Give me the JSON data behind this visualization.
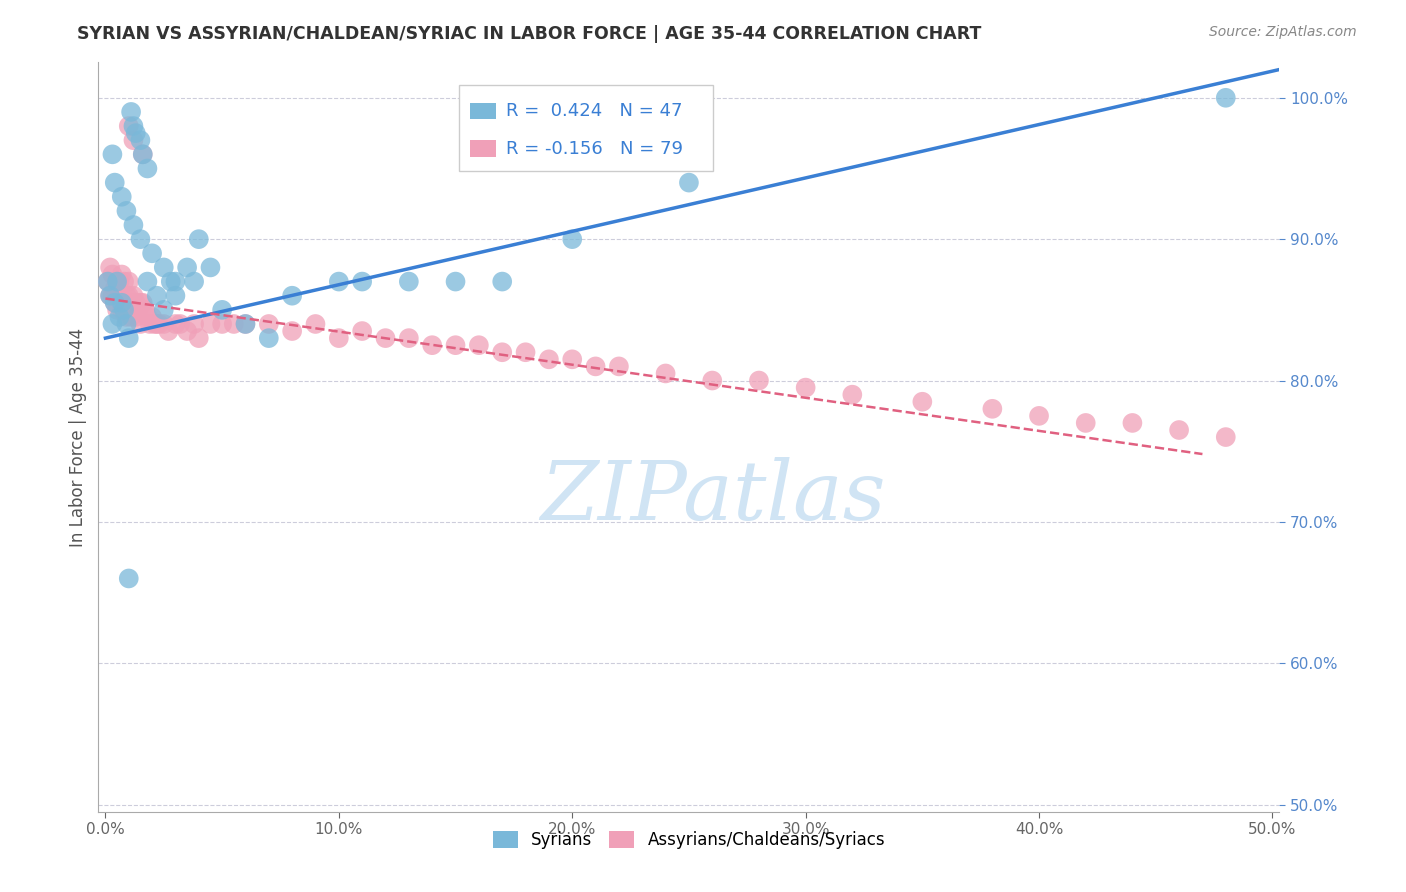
{
  "title": "SYRIAN VS ASSYRIAN/CHALDEAN/SYRIAC IN LABOR FORCE | AGE 35-44 CORRELATION CHART",
  "source": "Source: ZipAtlas.com",
  "xlabel": "",
  "ylabel": "In Labor Force | Age 35-44",
  "xlim": [
    -0.003,
    0.503
  ],
  "ylim": [
    0.495,
    1.025
  ],
  "xticks": [
    0.0,
    0.1,
    0.2,
    0.3,
    0.4,
    0.5
  ],
  "xtick_labels": [
    "0.0%",
    "10.0%",
    "20.0%",
    "30.0%",
    "40.0%",
    "50.0%"
  ],
  "yticks": [
    0.5,
    0.6,
    0.7,
    0.8,
    0.9,
    1.0
  ],
  "ytick_labels": [
    "50.0%",
    "60.0%",
    "70.0%",
    "80.0%",
    "90.0%",
    "100.0%"
  ],
  "R_syrian": 0.424,
  "N_syrian": 47,
  "R_assyrian": -0.156,
  "N_assyrian": 79,
  "syrian_color": "#7ab8d9",
  "assyrian_color": "#f0a0b8",
  "trend_syrian_color": "#3a7fd4",
  "trend_assyrian_color": "#e06080",
  "watermark_text": "ZIPatlas",
  "watermark_color": "#d0e4f4",
  "background_color": "#ffffff",
  "grid_color": "#c8c8d8",
  "title_color": "#333333",
  "source_color": "#888888",
  "syrian_x": [
    0.001,
    0.002,
    0.003,
    0.004,
    0.005,
    0.006,
    0.007,
    0.008,
    0.009,
    0.01,
    0.011,
    0.012,
    0.013,
    0.015,
    0.016,
    0.018,
    0.003,
    0.004,
    0.007,
    0.009,
    0.012,
    0.015,
    0.018,
    0.022,
    0.025,
    0.028,
    0.03,
    0.035,
    0.038,
    0.04,
    0.045,
    0.05,
    0.06,
    0.07,
    0.08,
    0.1,
    0.11,
    0.13,
    0.15,
    0.17,
    0.2,
    0.25,
    0.03,
    0.025,
    0.02,
    0.48,
    0.01
  ],
  "syrian_y": [
    0.87,
    0.86,
    0.84,
    0.855,
    0.87,
    0.845,
    0.855,
    0.85,
    0.84,
    0.83,
    0.99,
    0.98,
    0.975,
    0.97,
    0.96,
    0.95,
    0.96,
    0.94,
    0.93,
    0.92,
    0.91,
    0.9,
    0.87,
    0.86,
    0.85,
    0.87,
    0.86,
    0.88,
    0.87,
    0.9,
    0.88,
    0.85,
    0.84,
    0.83,
    0.86,
    0.87,
    0.87,
    0.87,
    0.87,
    0.87,
    0.9,
    0.94,
    0.87,
    0.88,
    0.89,
    1.0,
    0.66
  ],
  "assyrian_x": [
    0.001,
    0.002,
    0.002,
    0.003,
    0.003,
    0.004,
    0.004,
    0.005,
    0.005,
    0.006,
    0.006,
    0.007,
    0.007,
    0.008,
    0.008,
    0.009,
    0.009,
    0.01,
    0.01,
    0.01,
    0.011,
    0.011,
    0.012,
    0.012,
    0.013,
    0.013,
    0.014,
    0.015,
    0.015,
    0.016,
    0.017,
    0.018,
    0.019,
    0.02,
    0.021,
    0.022,
    0.023,
    0.025,
    0.027,
    0.03,
    0.032,
    0.035,
    0.038,
    0.04,
    0.045,
    0.05,
    0.055,
    0.06,
    0.07,
    0.08,
    0.09,
    0.1,
    0.11,
    0.12,
    0.13,
    0.14,
    0.15,
    0.16,
    0.17,
    0.18,
    0.19,
    0.2,
    0.21,
    0.22,
    0.24,
    0.26,
    0.28,
    0.3,
    0.32,
    0.35,
    0.38,
    0.4,
    0.42,
    0.44,
    0.46,
    0.48,
    0.01,
    0.012,
    0.016
  ],
  "assyrian_y": [
    0.87,
    0.86,
    0.88,
    0.86,
    0.875,
    0.865,
    0.855,
    0.87,
    0.85,
    0.87,
    0.86,
    0.875,
    0.85,
    0.87,
    0.855,
    0.86,
    0.845,
    0.86,
    0.855,
    0.87,
    0.855,
    0.845,
    0.86,
    0.85,
    0.855,
    0.845,
    0.85,
    0.855,
    0.84,
    0.855,
    0.85,
    0.845,
    0.84,
    0.845,
    0.84,
    0.84,
    0.84,
    0.84,
    0.835,
    0.84,
    0.84,
    0.835,
    0.84,
    0.83,
    0.84,
    0.84,
    0.84,
    0.84,
    0.84,
    0.835,
    0.84,
    0.83,
    0.835,
    0.83,
    0.83,
    0.825,
    0.825,
    0.825,
    0.82,
    0.82,
    0.815,
    0.815,
    0.81,
    0.81,
    0.805,
    0.8,
    0.8,
    0.795,
    0.79,
    0.785,
    0.78,
    0.775,
    0.77,
    0.77,
    0.765,
    0.76,
    0.98,
    0.97,
    0.96
  ],
  "trend_syr_x0": 0.0,
  "trend_syr_y0": 0.83,
  "trend_syr_x1": 0.503,
  "trend_syr_y1": 1.02,
  "trend_ass_x0": 0.0,
  "trend_ass_y0": 0.858,
  "trend_ass_x1": 0.47,
  "trend_ass_y1": 0.748
}
